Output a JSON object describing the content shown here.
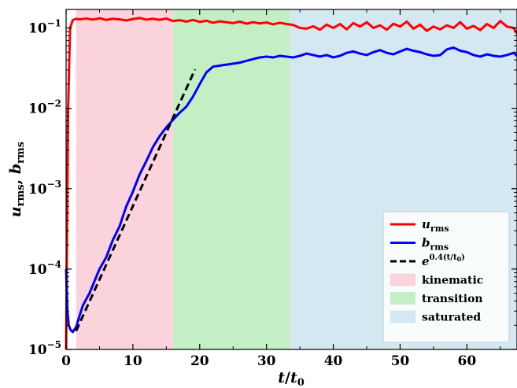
{
  "chart_data": {
    "type": "line",
    "title": "",
    "xlabel": {
      "main": "t",
      "sep": "/",
      "den": "t",
      "den_sub": "0"
    },
    "ylabel": {
      "a": "u",
      "a_sub": "rms",
      "sep": ", ",
      "b": "b",
      "b_sub": "rms"
    },
    "xlim": [
      0,
      67.5
    ],
    "ylim": [
      1e-05,
      0.17
    ],
    "yscale": "log",
    "xticks": [
      0,
      10,
      20,
      30,
      40,
      50,
      60
    ],
    "yticks": [
      {
        "value": 1e-05,
        "base": "10",
        "exp": "−5"
      },
      {
        "value": 0.0001,
        "base": "10",
        "exp": "−4"
      },
      {
        "value": 0.001,
        "base": "10",
        "exp": "−3"
      },
      {
        "value": 0.01,
        "base": "10",
        "exp": "−2"
      },
      {
        "value": 0.1,
        "base": "10",
        "exp": "−1"
      }
    ],
    "grid": false,
    "regions": [
      {
        "name": "kinematic",
        "x0": 1.5,
        "x1": 16,
        "color": "#fbd3dc"
      },
      {
        "name": "transition",
        "x0": 16,
        "x1": 33.5,
        "color": "#c4efc4"
      },
      {
        "name": "saturated",
        "x0": 33.5,
        "x1": 67.5,
        "color": "#d3e8f0"
      }
    ],
    "series": [
      {
        "name": "u_rms",
        "legend": {
          "sym": "u",
          "sub": "rms"
        },
        "color": "#ff0000",
        "x": [
          0,
          0.3,
          0.6,
          1,
          1.5,
          2,
          3,
          4,
          5,
          6,
          7,
          8,
          9,
          10,
          11,
          12,
          13,
          14,
          15,
          16,
          17,
          18,
          19,
          20,
          21,
          22,
          23,
          24,
          25,
          26,
          27,
          28,
          29,
          30,
          31,
          32,
          33,
          34,
          35,
          36,
          37,
          38,
          39,
          40,
          41,
          42,
          43,
          44,
          45,
          46,
          47,
          48,
          49,
          50,
          51,
          52,
          53,
          54,
          55,
          56,
          57,
          58,
          59,
          60,
          61,
          62,
          63,
          64,
          65,
          66,
          67,
          67.5
        ],
        "y": [
          1e-05,
          0.01,
          0.1,
          0.125,
          0.13,
          0.128,
          0.131,
          0.127,
          0.132,
          0.126,
          0.13,
          0.128,
          0.124,
          0.129,
          0.133,
          0.127,
          0.13,
          0.126,
          0.131,
          0.122,
          0.125,
          0.12,
          0.126,
          0.119,
          0.123,
          0.116,
          0.121,
          0.118,
          0.115,
          0.12,
          0.113,
          0.118,
          0.114,
          0.117,
          0.111,
          0.116,
          0.112,
          0.109,
          0.1,
          0.098,
          0.105,
          0.095,
          0.11,
          0.1,
          0.112,
          0.096,
          0.115,
          0.104,
          0.118,
          0.1,
          0.108,
          0.095,
          0.113,
          0.104,
          0.12,
          0.098,
          0.11,
          0.092,
          0.104,
          0.096,
          0.108,
          0.1,
          0.118,
          0.098,
          0.106,
          0.094,
          0.112,
          0.1,
          0.122,
          0.104,
          0.1,
          0.085
        ]
      },
      {
        "name": "b_rms",
        "legend": {
          "sym": "b",
          "sub": "rms"
        },
        "color": "#0000ff",
        "x": [
          0,
          0.2,
          0.4,
          0.6,
          0.8,
          1,
          1.5,
          2,
          2.5,
          3,
          3.5,
          4,
          5,
          6,
          7,
          8,
          9,
          10,
          11,
          12,
          13,
          14,
          15,
          16,
          17,
          18,
          19,
          20,
          21,
          22,
          23,
          24,
          25,
          26,
          27,
          28,
          29,
          30,
          31,
          32,
          33,
          34,
          35,
          36,
          37,
          38,
          39,
          40,
          41,
          42,
          43,
          44,
          45,
          46,
          47,
          48,
          49,
          50,
          51,
          52,
          53,
          54,
          55,
          56,
          57,
          58,
          59,
          60,
          61,
          62,
          63,
          64,
          65,
          66,
          67,
          67.5
        ],
        "y": [
          0.0001,
          3e-05,
          2e-05,
          1.8e-05,
          1.7e-05,
          1.65e-05,
          1.9e-05,
          2.6e-05,
          3.5e-05,
          4.2e-05,
          5e-05,
          6.3e-05,
          0.0001,
          0.00014,
          0.00023,
          0.00034,
          0.0006,
          0.00092,
          0.0015,
          0.0022,
          0.0033,
          0.0045,
          0.0058,
          0.0072,
          0.0088,
          0.0105,
          0.014,
          0.02,
          0.028,
          0.033,
          0.034,
          0.035,
          0.036,
          0.037,
          0.039,
          0.041,
          0.043,
          0.044,
          0.043,
          0.045,
          0.044,
          0.043,
          0.045,
          0.048,
          0.046,
          0.044,
          0.046,
          0.043,
          0.045,
          0.049,
          0.051,
          0.048,
          0.046,
          0.05,
          0.053,
          0.049,
          0.047,
          0.051,
          0.055,
          0.052,
          0.05,
          0.047,
          0.045,
          0.046,
          0.054,
          0.057,
          0.052,
          0.05,
          0.046,
          0.044,
          0.047,
          0.045,
          0.044,
          0.046,
          0.049,
          0.045
        ]
      },
      {
        "name": "e^{0.4(t/t0)}",
        "legend": {
          "sym": "e",
          "sup": "0.4(t/t",
          "sup_sub": "0",
          "sup_end": ")"
        },
        "color": "#000000",
        "dashed": true,
        "x": [
          1.5,
          19.3
        ],
        "y": [
          1.7e-05,
          0.0305
        ]
      }
    ],
    "legend": {
      "placement": "lower-right",
      "region_labels": [
        "kinematic",
        "transition",
        "saturated"
      ]
    }
  }
}
